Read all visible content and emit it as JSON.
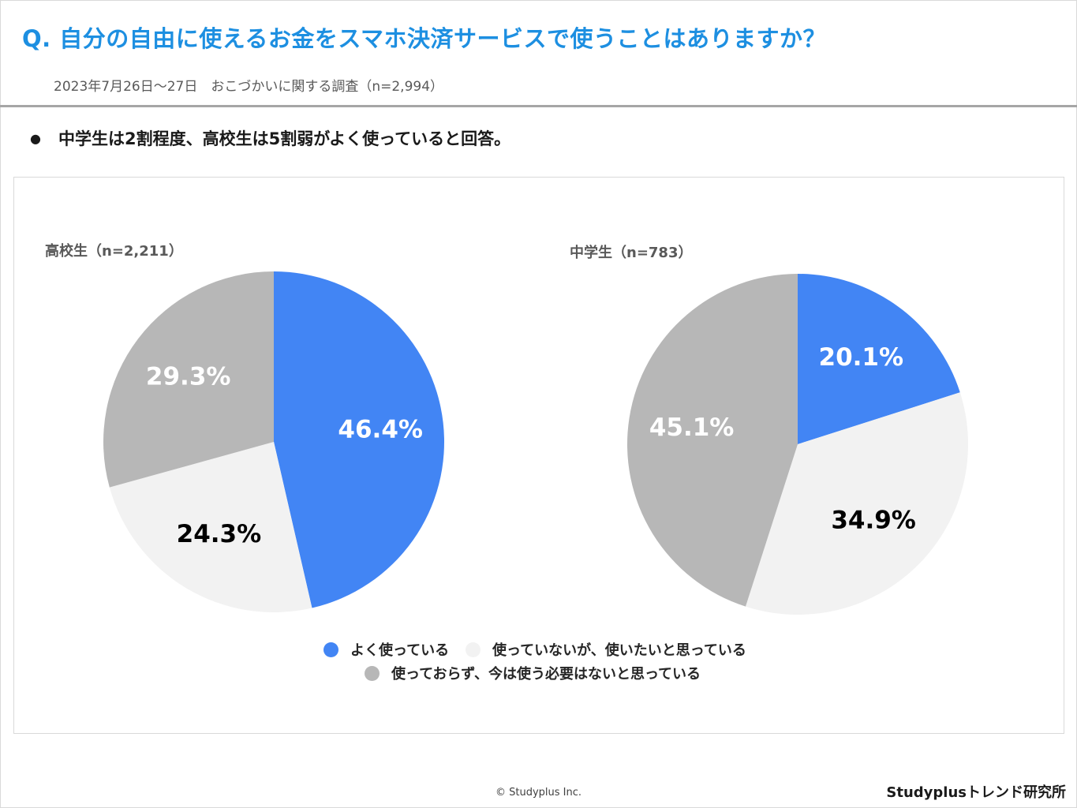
{
  "header": {
    "question": "Q. 自分の自由に使えるお金をスマホ決済サービスで使うことはありますか？",
    "survey_info": "2023年7月26日～27日　おこづかいに関する調査（n=2,994）"
  },
  "finding": {
    "bullet": "●",
    "text": "中学生は2割程度、高校生は5割弱がよく使っていると回答。"
  },
  "colors": {
    "often": "#4285f4",
    "want": "#f2f2f2",
    "none": "#b7b7b7",
    "accent": "#1d8fe1"
  },
  "chart_data": [
    {
      "type": "pie",
      "title": "高校生（n=2,211）",
      "categories": [
        "よく使っている",
        "使っていないが、使いたいと思っている",
        "使っておらず、今は使う必要はないと思っている"
      ],
      "values": [
        46.4,
        24.3,
        29.3
      ],
      "labels": [
        "46.4%",
        "24.3%",
        "29.3%"
      ]
    },
    {
      "type": "pie",
      "title": "中学生（n=783）",
      "categories": [
        "よく使っている",
        "使っていないが、使いたいと思っている",
        "使っておらず、今は使う必要はないと思っている"
      ],
      "values": [
        20.1,
        34.9,
        45.1
      ],
      "labels": [
        "20.1%",
        "34.9%",
        "45.1%"
      ]
    }
  ],
  "legend": {
    "items": [
      "よく使っている",
      "使っていないが、使いたいと思っている",
      "使っておらず、今は使う必要はないと思っている"
    ]
  },
  "footer": {
    "copyright": "© Studyplus Inc.",
    "brand": "Studyplusトレンド研究所"
  }
}
